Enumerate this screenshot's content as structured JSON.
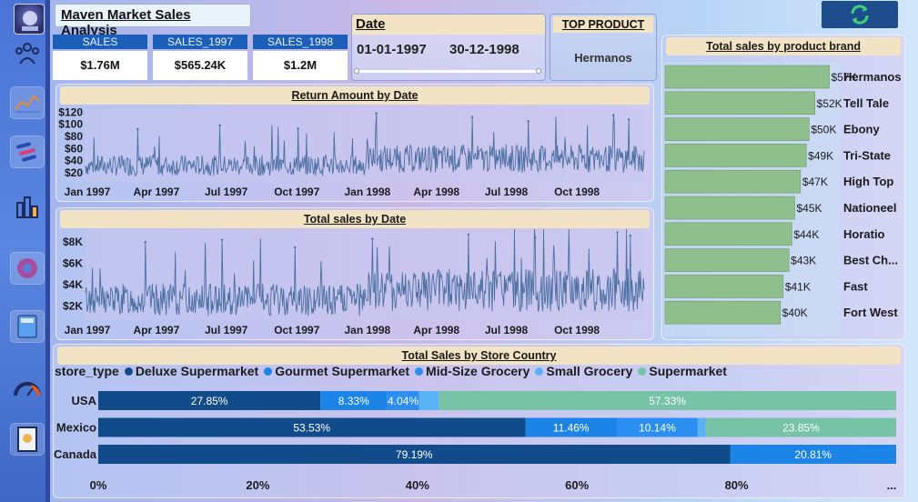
{
  "app_title": "Maven Market Sales Analysis",
  "kpis": [
    {
      "label": "SALES",
      "value": "$1.76M"
    },
    {
      "label": "SALES_1997",
      "value": "$565.24K"
    },
    {
      "label": "SALES_1998",
      "value": "$1.2M"
    }
  ],
  "date_filter": {
    "title": "Date",
    "start": "01-01-1997",
    "end": "30-12-1998"
  },
  "top_product": {
    "title": "TOP PRODUCT",
    "value": "Hermanos"
  },
  "colors": {
    "deluxe": "#114b8a",
    "gourmet": "#1c84e6",
    "midsize": "#2a8ff0",
    "small": "#5bb3f5",
    "supermarket": "#76c3a7",
    "brand_bar": "#8fbf8d",
    "line": "#4a6fa0",
    "accent": "#1c5fb8"
  },
  "chart_data": [
    {
      "id": "return_amount",
      "type": "line",
      "title": "Return Amount by Date",
      "x_tick_labels": [
        "Jan 1997",
        "Apr 1997",
        "Jul 1997",
        "Oct 1997",
        "Jan 1998",
        "Apr 1998",
        "Jul 1998",
        "Oct 1998"
      ],
      "y_tick_labels": [
        "$20",
        "$40",
        "$60",
        "$80",
        "$100",
        "$120"
      ],
      "y_ticks": [
        20,
        40,
        60,
        80,
        100,
        120
      ],
      "ylim": [
        5,
        125
      ],
      "x_range": [
        "1997-01-01",
        "1998-12-30"
      ],
      "peaks": [
        {
          "x": "1997-03-10",
          "y": 92
        },
        {
          "x": "1997-06-25",
          "y": 98
        },
        {
          "x": "1997-10-05",
          "y": 93
        },
        {
          "x": "1998-01-15",
          "y": 118
        },
        {
          "x": "1998-05-20",
          "y": 112
        },
        {
          "x": "1998-08-01",
          "y": 105
        },
        {
          "x": "1998-11-20",
          "y": 115
        },
        {
          "x": "1998-12-10",
          "y": 108
        }
      ]
    },
    {
      "id": "total_sales",
      "type": "line",
      "title": "Total sales by Date",
      "x_tick_labels": [
        "Jan 1997",
        "Apr 1997",
        "Jul 1997",
        "Oct 1997",
        "Jan 1998",
        "Apr 1998",
        "Jul 1998",
        "Oct 1998"
      ],
      "y_tick_labels": [
        "$2K",
        "$4K",
        "$6K",
        "$8K"
      ],
      "y_ticks": [
        2000,
        4000,
        6000,
        8000
      ],
      "ylim": [
        700,
        9200
      ],
      "x_range": [
        "1997-01-01",
        "1998-12-30"
      ],
      "peaks": [
        {
          "x": "1997-03-20",
          "y": 8000
        },
        {
          "x": "1997-06-28",
          "y": 8200
        },
        {
          "x": "1997-10-01",
          "y": 7500
        },
        {
          "x": "1998-01-10",
          "y": 8300
        },
        {
          "x": "1998-05-15",
          "y": 8700
        },
        {
          "x": "1998-08-10",
          "y": 8400
        },
        {
          "x": "1998-11-25",
          "y": 8900
        },
        {
          "x": "1998-12-12",
          "y": 8600
        }
      ]
    },
    {
      "id": "brand_sales",
      "type": "bar",
      "orientation": "horizontal",
      "title": "Total sales by product brand",
      "categories": [
        "Hermanos",
        "Tell Tale",
        "Ebony",
        "Tri-State",
        "High Top",
        "Nationeel",
        "Horatio",
        "Best Ch...",
        "Fast",
        "Fort West"
      ],
      "values": [
        57,
        52,
        50,
        49,
        47,
        45,
        44,
        43,
        41,
        40
      ],
      "value_labels": [
        "$57K",
        "$52K",
        "$50K",
        "$49K",
        "$47K",
        "$45K",
        "$44K",
        "$43K",
        "$41K",
        "$40K"
      ],
      "unit": "K",
      "xlim": [
        0,
        60
      ]
    },
    {
      "id": "store_country",
      "type": "bar",
      "orientation": "horizontal",
      "stacked": "100%",
      "title": "Total Sales by Store Country",
      "legend_title": "store_type",
      "categories": [
        "USA",
        "Mexico",
        "Canada"
      ],
      "series": [
        {
          "name": "Deluxe Supermarket",
          "color": "#114b8a",
          "values": [
            27.85,
            53.53,
            79.19
          ],
          "labels": [
            "27.85%",
            "53.53%",
            "79.19%"
          ]
        },
        {
          "name": "Gourmet Supermarket",
          "color": "#1c84e6",
          "values": [
            8.33,
            11.46,
            20.81
          ],
          "labels": [
            "8.33%",
            "11.46%",
            "20.81%"
          ]
        },
        {
          "name": "Mid-Size Grocery",
          "color": "#2a8ff0",
          "values": [
            4.04,
            10.14,
            0
          ],
          "labels": [
            "4.04%",
            "10.14%",
            ""
          ]
        },
        {
          "name": "Small Grocery",
          "color": "#5bb3f5",
          "values": [
            2.45,
            1.02,
            0
          ],
          "labels": [
            "",
            "",
            ""
          ]
        },
        {
          "name": "Supermarket",
          "color": "#76c3a7",
          "values": [
            57.33,
            23.85,
            0
          ],
          "labels": [
            "57.33%",
            "23.85%",
            ""
          ]
        }
      ],
      "x_tick_labels": [
        "0%",
        "20%",
        "40%",
        "60%",
        "80%"
      ],
      "xlim": [
        0,
        100
      ],
      "more_indicator": "..."
    }
  ]
}
